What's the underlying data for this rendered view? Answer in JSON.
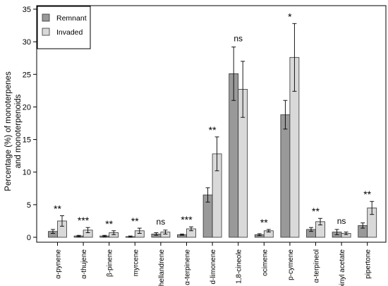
{
  "chart_data": {
    "type": "bar",
    "ylabel": "Percentage (%) of monoterpenes\nand monoterpenoids",
    "ylim": [
      0,
      35
    ],
    "yticks": [
      0,
      5,
      10,
      15,
      20,
      25,
      30,
      35
    ],
    "grid": false,
    "legend_position": "top-left",
    "categories": [
      "α-pynene",
      "α-thujene",
      "β-pinene",
      "myrcene",
      "α-phellandrene",
      "α-terpinene",
      "d-limonene",
      "1,8-cineole",
      "ocimene",
      "p-cymene",
      "α-terpineol",
      "terpinyl acetate",
      "pipertone"
    ],
    "series": [
      {
        "name": "Remnant",
        "color": "#999999",
        "values": [
          0.9,
          0.2,
          0.2,
          0.1,
          0.5,
          0.4,
          6.5,
          25.1,
          0.4,
          18.8,
          1.2,
          0.8,
          1.8
        ],
        "errors": [
          0.3,
          0.1,
          0.1,
          0.1,
          0.2,
          0.1,
          1.1,
          4.1,
          0.15,
          2.2,
          0.3,
          0.4,
          0.4
        ]
      },
      {
        "name": "Invaded",
        "color": "#d9d9d9",
        "values": [
          2.5,
          1.1,
          0.7,
          1.0,
          0.8,
          1.3,
          12.8,
          22.7,
          1.0,
          27.6,
          2.4,
          0.6,
          4.5
        ],
        "errors": [
          0.8,
          0.4,
          0.3,
          0.4,
          0.3,
          0.3,
          2.6,
          4.3,
          0.2,
          5.2,
          0.5,
          0.2,
          1.0
        ]
      }
    ],
    "annotations": [
      "**",
      "***",
      "**",
      "**",
      "ns",
      "***",
      "**",
      "ns",
      "**",
      "*",
      "**",
      "ns",
      "**"
    ]
  }
}
